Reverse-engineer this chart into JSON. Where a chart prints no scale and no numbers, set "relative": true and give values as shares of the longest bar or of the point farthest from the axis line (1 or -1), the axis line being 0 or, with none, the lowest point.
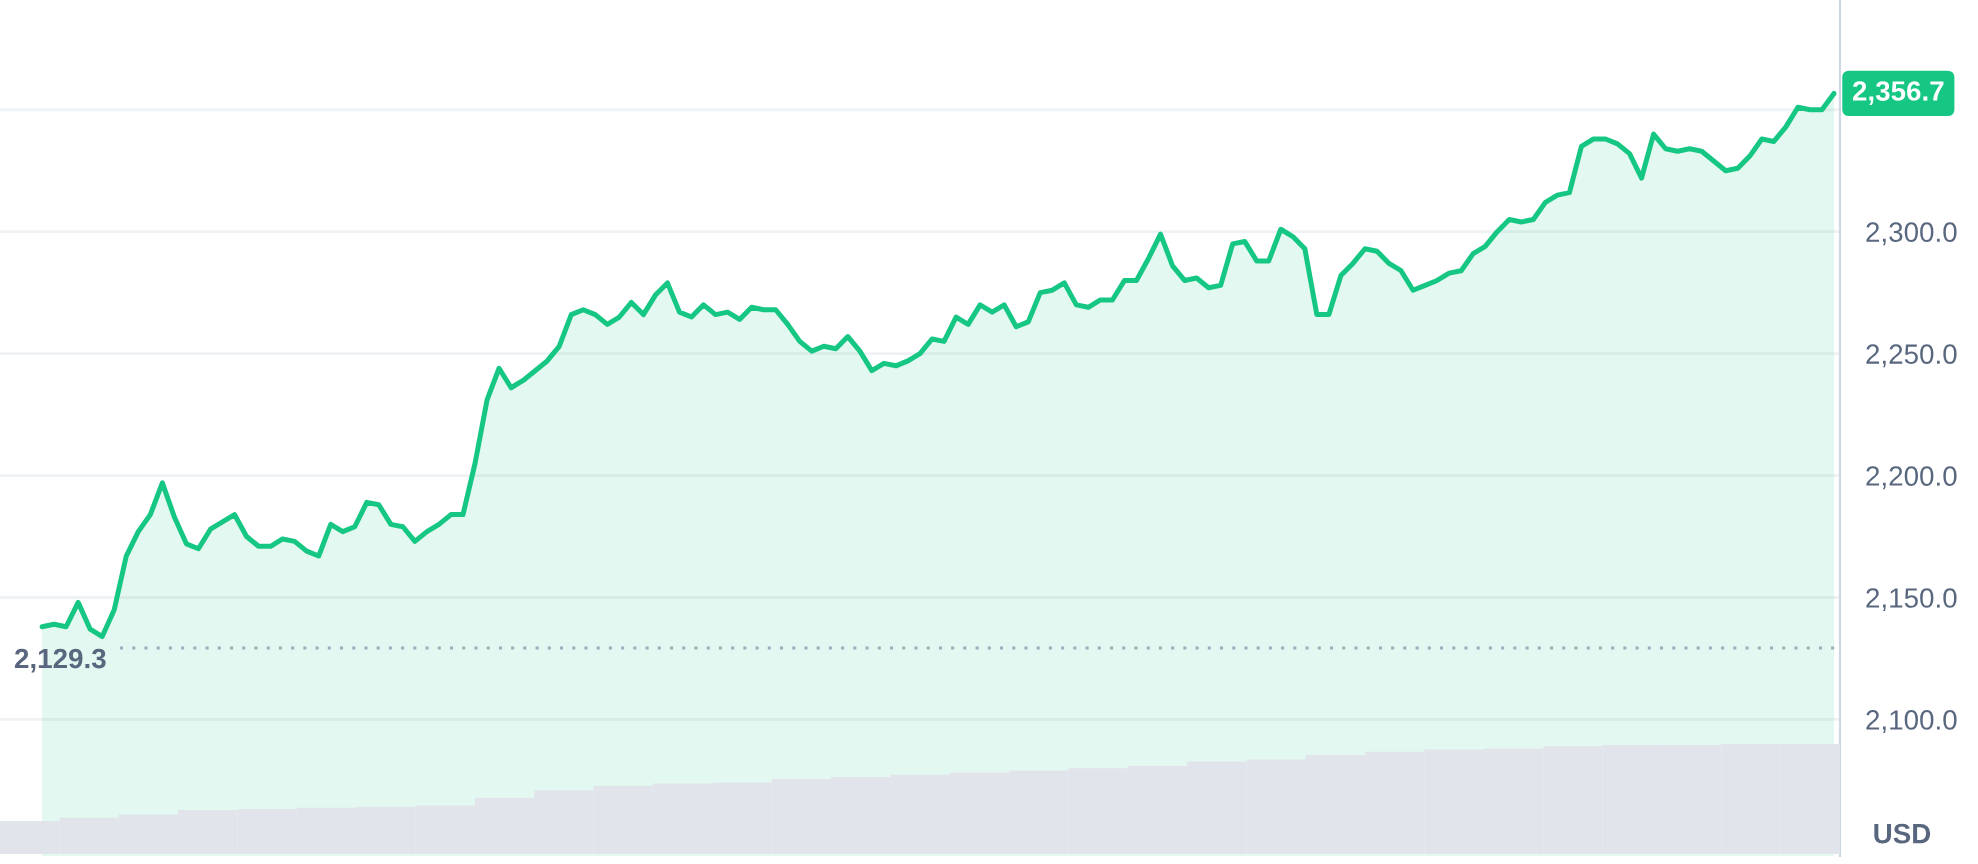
{
  "chart_data": [
    {
      "type": "area",
      "categories": [
        null,
        null,
        null,
        null,
        null,
        null,
        null,
        null,
        null,
        null,
        null,
        null,
        null,
        null,
        null,
        null,
        null,
        null,
        null,
        null,
        null,
        null,
        null,
        null,
        null,
        null,
        null,
        null,
        null,
        null,
        null,
        null,
        null,
        null,
        null,
        null,
        null,
        null,
        null,
        null,
        null,
        null,
        null,
        null,
        null,
        null,
        null,
        null,
        null,
        null,
        null,
        null,
        null,
        null,
        null,
        null,
        null,
        null,
        null,
        null,
        null,
        null,
        null,
        null,
        null,
        null,
        null,
        null,
        null,
        null,
        null,
        null,
        null,
        null,
        null,
        null,
        null,
        null,
        null,
        null,
        null,
        null,
        null,
        null,
        null,
        null,
        null,
        null,
        null,
        null,
        null,
        null,
        null,
        null,
        null,
        null,
        null,
        null,
        null,
        null,
        null,
        null,
        null,
        null,
        null,
        null,
        null,
        null,
        null,
        null,
        null,
        null,
        null,
        null,
        null,
        null,
        null,
        null,
        null,
        null,
        null,
        null,
        null,
        null,
        null,
        null,
        null,
        null,
        null,
        null,
        null,
        null,
        null,
        null,
        null,
        null,
        null,
        null,
        null,
        null,
        null,
        null,
        null,
        null,
        null,
        null,
        null,
        null,
        null,
        null
      ],
      "values": [
        2138,
        2139,
        2138,
        2148,
        2137,
        2134,
        2145,
        2167,
        2177,
        2184,
        2197,
        2183,
        2172,
        2170,
        2178,
        2181,
        2184,
        2175,
        2171,
        2171,
        2174,
        2173,
        2169,
        2167,
        2180,
        2177,
        2179,
        2189,
        2188,
        2180,
        2179,
        2173,
        2177,
        2180,
        2184,
        2184,
        2205,
        2231,
        2244,
        2236,
        2239,
        2243,
        2247,
        2253,
        2266,
        2268,
        2266,
        2262,
        2265,
        2271,
        2266,
        2274,
        2279,
        2267,
        2265,
        2270,
        2266,
        2267,
        2264,
        2269,
        2268,
        2268,
        2262,
        2255,
        2251,
        2253,
        2252,
        2257,
        2251,
        2243,
        2246,
        2245,
        2247,
        2250,
        2256,
        2255,
        2265,
        2262,
        2270,
        2267,
        2270,
        2261,
        2263,
        2275,
        2276,
        2279,
        2270,
        2269,
        2272,
        2272,
        2280,
        2280,
        2289,
        2299,
        2286,
        2280,
        2281,
        2277,
        2278,
        2295,
        2296,
        2288,
        2288,
        2301,
        2298,
        2293,
        2266,
        2266,
        2282,
        2287,
        2293,
        2292,
        2287,
        2284,
        2276,
        2278,
        2280,
        2283,
        2284,
        2291,
        2294,
        2300,
        2305,
        2304,
        2305,
        2312,
        2315,
        2316,
        2335,
        2338,
        2338,
        2336,
        2332,
        2322,
        2340,
        2334,
        2333,
        2334,
        2333,
        2329,
        2325,
        2326,
        2331,
        2338,
        2337,
        2343,
        2351,
        2350,
        2350,
        2356.7
      ],
      "color": "#16c784",
      "ylim": [
        2044,
        2395
      ],
      "yticks": [
        {
          "value": 2100,
          "label": "2,100.0"
        },
        {
          "value": 2150,
          "label": "2,150.0"
        },
        {
          "value": 2200,
          "label": "2,200.0"
        },
        {
          "value": 2250,
          "label": "2,250.0"
        },
        {
          "value": 2300,
          "label": "2,300.0"
        },
        {
          "value": 2350,
          "label": null
        }
      ],
      "ylabel": "USD",
      "grid": "y",
      "tick_labels": "y",
      "ref_lines": [
        {
          "axis": "y",
          "value": 2129.3,
          "label": "2,129.3",
          "line_style": "dotted",
          "color": "#a6b0c3"
        }
      ],
      "annotations": [
        "2,356.7"
      ]
    },
    {
      "type": "bar",
      "relative": true,
      "categories": [
        null,
        null,
        null,
        null,
        null,
        null,
        null,
        null,
        null,
        null,
        null,
        null,
        null,
        null,
        null,
        null,
        null,
        null,
        null,
        null,
        null,
        null,
        null,
        null,
        null,
        null,
        null,
        null,
        null,
        null,
        null
      ],
      "values": [
        0.3,
        0.33,
        0.36,
        0.4,
        0.41,
        0.42,
        0.43,
        0.44,
        0.51,
        0.58,
        0.62,
        0.64,
        0.65,
        0.68,
        0.7,
        0.72,
        0.74,
        0.76,
        0.78,
        0.8,
        0.84,
        0.86,
        0.9,
        0.93,
        0.95,
        0.96,
        0.98,
        0.99,
        0.99,
        1,
        1
      ],
      "color": "#e1e5eb",
      "tick_labels": false
    }
  ]
}
